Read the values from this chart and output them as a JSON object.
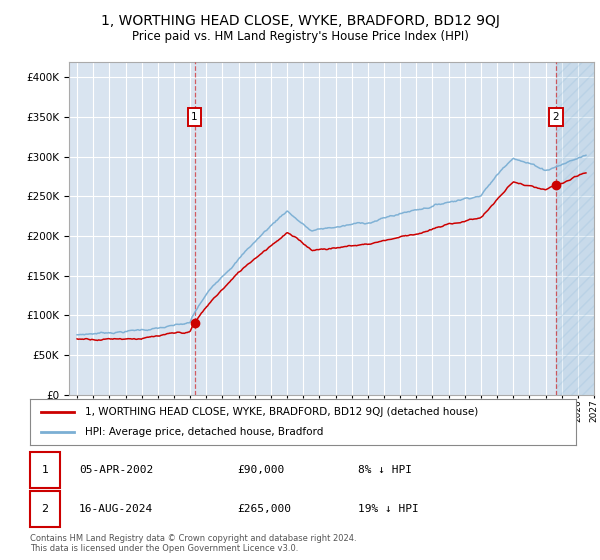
{
  "title": "1, WORTHING HEAD CLOSE, WYKE, BRADFORD, BD12 9QJ",
  "subtitle": "Price paid vs. HM Land Registry's House Price Index (HPI)",
  "yticks": [
    0,
    50000,
    100000,
    150000,
    200000,
    250000,
    300000,
    350000,
    400000
  ],
  "xlim_start": 1994.5,
  "xlim_end": 2027.0,
  "ylim": [
    0,
    420000
  ],
  "background_color": "#d9e4f0",
  "grid_color": "#ffffff",
  "hpi_line_color": "#7bafd4",
  "price_line_color": "#cc0000",
  "sale1_date": 2002.27,
  "sale1_price": 90000,
  "sale2_date": 2024.62,
  "sale2_price": 265000,
  "legend_label1": "1, WORTHING HEAD CLOSE, WYKE, BRADFORD, BD12 9QJ (detached house)",
  "legend_label2": "HPI: Average price, detached house, Bradford",
  "footer_text": "Contains HM Land Registry data © Crown copyright and database right 2024.\nThis data is licensed under the Open Government Licence v3.0.",
  "hatch_alpha": 0.18
}
